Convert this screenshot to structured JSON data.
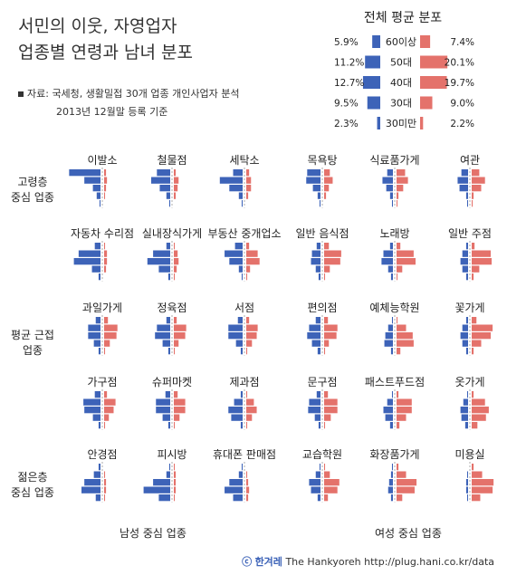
{
  "title": {
    "line1": "서민의 이웃, 자영업자",
    "line2": "업종별 연령과 남녀 분포"
  },
  "source": {
    "line1": "자료: 국세청, 생활밀접 30개 업종 개인사업자 분석",
    "line2": "2013년 12월말 등록 기준"
  },
  "overall": {
    "title": "전체 평균 분포",
    "rows": [
      {
        "age": "60이상",
        "male_label": "5.9%",
        "male": 5.9,
        "female_label": "7.4%",
        "female": 7.4
      },
      {
        "age": "50대",
        "male_label": "11.2%",
        "male": 11.2,
        "female_label": "20.1%",
        "female": 20.1
      },
      {
        "age": "40대",
        "male_label": "12.7%",
        "male": 12.7,
        "female_label": "19.7%",
        "female": 19.7
      },
      {
        "age": "30대",
        "male_label": "9.5%",
        "male": 9.5,
        "female_label": "9.0%",
        "female": 9.0
      },
      {
        "age": "30미만",
        "male_label": "2.3%",
        "male": 2.3,
        "female_label": "2.2%",
        "female": 2.2
      }
    ]
  },
  "row_labels": [
    "고령층\n중심 업종",
    "",
    "평균 근접\n업종",
    "",
    "젊은층\n중심 업종"
  ],
  "axis_labels": {
    "left": "남성 중심 업종",
    "right": "여성 중심 업종"
  },
  "credit": {
    "symbol": "ⓒ",
    "brand": "한겨레",
    "rest": "The Hankyoreh http://plug.hani.co.kr/data"
  },
  "colors": {
    "male": "#3d63b8",
    "female": "#e4726b",
    "centerline": "#999999"
  },
  "chart_data": {
    "type": "bar",
    "subtype": "population-pyramid small multiples",
    "age_groups": [
      "60이상",
      "50대",
      "40대",
      "30대",
      "30미만"
    ],
    "unit": "% of business owners in industry",
    "industries": [
      {
        "name": "이발소",
        "male": [
          33,
          17,
          8,
          4,
          1
        ],
        "female": [
          2,
          3,
          2,
          1,
          0
        ]
      },
      {
        "name": "철물점",
        "male": [
          14,
          20,
          11,
          4,
          1
        ],
        "female": [
          2,
          5,
          4,
          2,
          0
        ]
      },
      {
        "name": "세탁소",
        "male": [
          10,
          24,
          14,
          4,
          1
        ],
        "female": [
          3,
          5,
          5,
          2,
          0
        ]
      },
      {
        "name": "목욕탕",
        "male": [
          14,
          15,
          8,
          3,
          1
        ],
        "female": [
          6,
          9,
          5,
          2,
          0
        ]
      },
      {
        "name": "식료품가게",
        "male": [
          6,
          11,
          7,
          3,
          1
        ],
        "female": [
          9,
          12,
          7,
          2,
          1
        ]
      },
      {
        "name": "여관",
        "male": [
          7,
          11,
          9,
          2,
          1
        ],
        "female": [
          8,
          14,
          10,
          2,
          1
        ]
      },
      {
        "name": "자동차 수리점",
        "male": [
          6,
          23,
          28,
          9,
          2
        ],
        "female": [
          1,
          3,
          3,
          2,
          0
        ]
      },
      {
        "name": "실내장식가게",
        "male": [
          4,
          18,
          24,
          12,
          2
        ],
        "female": [
          1,
          4,
          5,
          3,
          1
        ]
      },
      {
        "name": "부동산 중개업소",
        "male": [
          8,
          19,
          14,
          4,
          1
        ],
        "female": [
          3,
          12,
          14,
          4,
          1
        ]
      },
      {
        "name": "일반 음식점",
        "male": [
          4,
          9,
          10,
          5,
          2
        ],
        "female": [
          5,
          18,
          17,
          6,
          1
        ]
      },
      {
        "name": "노래방",
        "male": [
          3,
          10,
          12,
          5,
          2
        ],
        "female": [
          4,
          18,
          20,
          6,
          1
        ]
      },
      {
        "name": "일반 주점",
        "male": [
          2,
          6,
          8,
          6,
          2
        ],
        "female": [
          3,
          20,
          21,
          8,
          2
        ]
      },
      {
        "name": "과일가게",
        "male": [
          5,
          13,
          13,
          7,
          2
        ],
        "female": [
          4,
          14,
          13,
          6,
          1
        ]
      },
      {
        "name": "정육점",
        "male": [
          4,
          14,
          16,
          8,
          2
        ],
        "female": [
          3,
          13,
          12,
          5,
          1
        ]
      },
      {
        "name": "서점",
        "male": [
          5,
          15,
          15,
          7,
          2
        ],
        "female": [
          3,
          12,
          11,
          6,
          1
        ]
      },
      {
        "name": "편의점",
        "male": [
          5,
          12,
          14,
          9,
          3
        ],
        "female": [
          4,
          14,
          13,
          5,
          1
        ]
      },
      {
        "name": "예체능학원",
        "male": [
          1,
          5,
          8,
          9,
          2
        ],
        "female": [
          1,
          10,
          17,
          18,
          4
        ]
      },
      {
        "name": "꽃가게",
        "male": [
          2,
          6,
          8,
          6,
          2
        ],
        "female": [
          5,
          22,
          20,
          10,
          2
        ]
      },
      {
        "name": "가구점",
        "male": [
          6,
          18,
          17,
          8,
          2
        ],
        "female": [
          3,
          12,
          10,
          5,
          1
        ]
      },
      {
        "name": "슈퍼마켓",
        "male": [
          5,
          15,
          15,
          8,
          2
        ],
        "female": [
          4,
          12,
          12,
          6,
          1
        ]
      },
      {
        "name": "제과점",
        "male": [
          2,
          9,
          15,
          12,
          2
        ],
        "female": [
          1,
          8,
          11,
          6,
          1
        ]
      },
      {
        "name": "문구점",
        "male": [
          4,
          12,
          13,
          6,
          2
        ],
        "female": [
          4,
          14,
          14,
          7,
          1
        ]
      },
      {
        "name": "패스트푸드점",
        "male": [
          1,
          6,
          10,
          8,
          3
        ],
        "female": [
          2,
          16,
          16,
          10,
          3
        ]
      },
      {
        "name": "옷가게",
        "male": [
          1,
          5,
          8,
          7,
          3
        ],
        "female": [
          2,
          14,
          18,
          15,
          6
        ]
      },
      {
        "name": "안경점",
        "male": [
          2,
          7,
          17,
          20,
          5
        ],
        "female": [
          0,
          1,
          2,
          2,
          1
        ]
      },
      {
        "name": "피시방",
        "male": [
          1,
          4,
          18,
          28,
          12
        ],
        "female": [
          1,
          2,
          2,
          2,
          1
        ]
      },
      {
        "name": "휴대폰 판매점",
        "male": [
          1,
          4,
          14,
          19,
          10
        ],
        "female": [
          0,
          1,
          2,
          3,
          2
        ]
      },
      {
        "name": "교습학원",
        "male": [
          1,
          5,
          12,
          10,
          3
        ],
        "female": [
          1,
          6,
          16,
          14,
          4
        ]
      },
      {
        "name": "화장품가게",
        "male": [
          1,
          2,
          4,
          5,
          2
        ],
        "female": [
          2,
          10,
          21,
          19,
          6
        ]
      },
      {
        "name": "미용실",
        "male": [
          0,
          1,
          2,
          2,
          1
        ],
        "female": [
          2,
          11,
          23,
          22,
          9
        ]
      }
    ]
  }
}
